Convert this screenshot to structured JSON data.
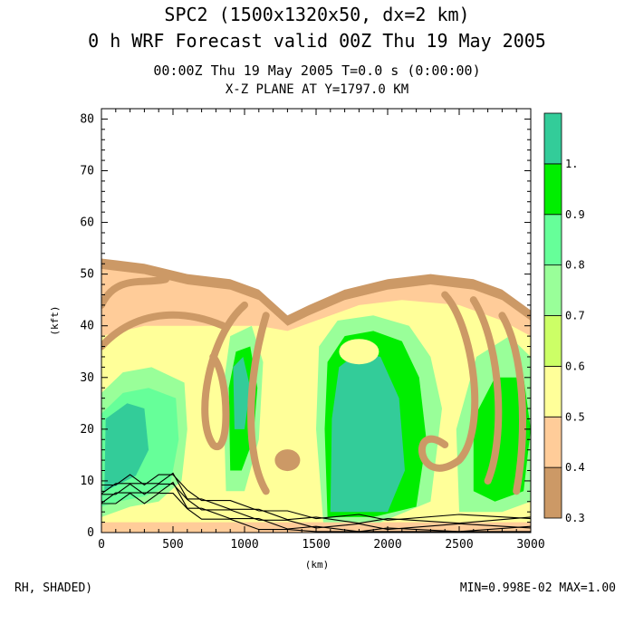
{
  "header": {
    "title_line1": "SPC2 (1500x1320x50, dx=2 km)",
    "title_line2": "0 h WRF Forecast valid 00Z Thu 19 May 2005",
    "time_line": "00:00Z Thu 19 May 2005      T=0.0 s (0:00:00)",
    "plane_line": "X-Z PLANE AT Y=1797.0 KM"
  },
  "footer": {
    "left": "RH, SHADED)",
    "right": "MIN=0.998E-02 MAX=1.00"
  },
  "chart_data": {
    "type": "heatmap",
    "xlabel": "(km)",
    "ylabel": "(kft)",
    "xlim": [
      0,
      3000
    ],
    "ylim": [
      0,
      82
    ],
    "x_ticks": [
      "0",
      "500",
      "1000",
      "1500",
      "2000",
      "2500",
      "3000"
    ],
    "y_ticks": [
      "0",
      "10",
      "20",
      "30",
      "40",
      "50",
      "60",
      "70",
      "80"
    ],
    "colorbar": {
      "labels": [
        "0.3",
        "0.4",
        "0.5",
        "0.6",
        "0.7",
        "0.8",
        "0.9",
        "1."
      ],
      "colors": [
        "#cc9966",
        "#ffcc99",
        "#ffff99",
        "#ccff66",
        "#99ff99",
        "#66ff99",
        "#00ee00",
        "#33cc99"
      ]
    },
    "top_of_moist_layer_kft": [
      [
        0,
        53
      ],
      [
        300,
        52
      ],
      [
        600,
        50
      ],
      [
        900,
        49
      ],
      [
        1100,
        47
      ],
      [
        1300,
        42
      ],
      [
        1450,
        44
      ],
      [
        1700,
        47
      ],
      [
        2000,
        49
      ],
      [
        2300,
        50
      ],
      [
        2600,
        49
      ],
      [
        2800,
        47
      ],
      [
        3000,
        43
      ]
    ],
    "terrain_kft": [
      [
        0,
        7
      ],
      [
        100,
        8
      ],
      [
        200,
        9
      ],
      [
        300,
        8
      ],
      [
        400,
        9
      ],
      [
        500,
        10
      ],
      [
        600,
        6
      ],
      [
        700,
        5
      ],
      [
        900,
        4
      ],
      [
        1100,
        3
      ],
      [
        1300,
        2
      ],
      [
        1500,
        1.5
      ],
      [
        1800,
        1.3
      ],
      [
        2000,
        1.2
      ],
      [
        2500,
        1.3
      ],
      [
        3000,
        1.5
      ]
    ]
  }
}
